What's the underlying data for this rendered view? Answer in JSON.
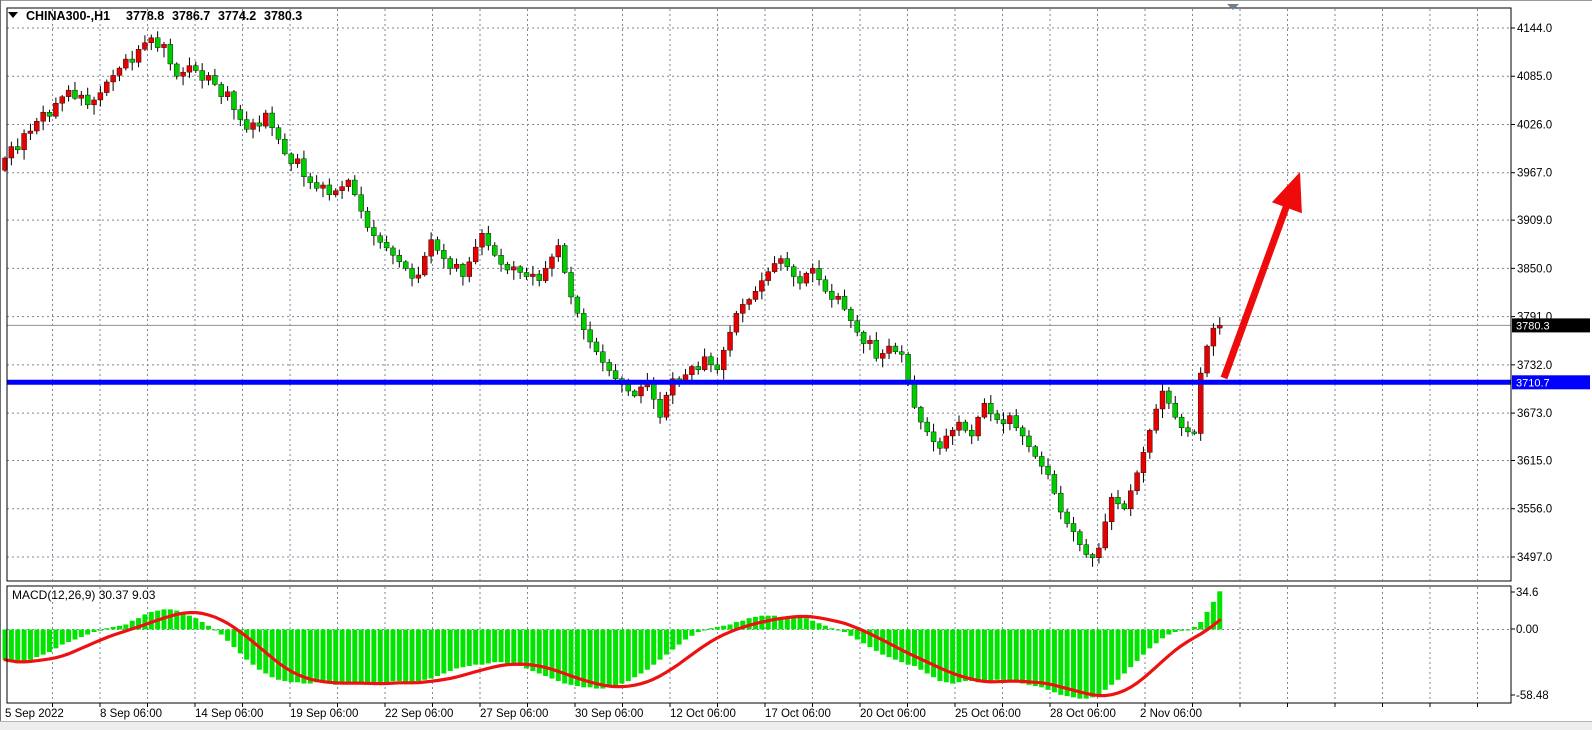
{
  "header": {
    "symbol_period": "CHINA300-,H1",
    "open": "3778.8",
    "high": "3786.7",
    "low": "3774.2",
    "close": "3780.3"
  },
  "price_axis": {
    "tick_labels": [
      "4144.0",
      "4085.0",
      "4026.0",
      "3967.0",
      "3909.0",
      "3850.0",
      "3791.0",
      "3732.0",
      "3673.0",
      "3615.0",
      "3556.0",
      "3497.0"
    ],
    "current_label": "3780.3",
    "hline_label": "3710.7"
  },
  "time_axis": {
    "tick_labels": [
      "5 Sep 2022",
      "8 Sep 06:00",
      "14 Sep 06:00",
      "19 Sep 06:00",
      "22 Sep 06:00",
      "27 Sep 06:00",
      "30 Sep 06:00",
      "12 Oct 06:00",
      "17 Oct 06:00",
      "20 Oct 06:00",
      "25 Oct 06:00",
      "28 Oct 06:00",
      "2 Nov 06:00"
    ]
  },
  "colors": {
    "bull": "#e60000",
    "bear": "#00cc00",
    "wick": "#000000",
    "macd_hist": "#00e400",
    "signal_line": "#ee1111",
    "support_line": "#0000ff",
    "last_price_line": "#909090",
    "grid": "#778899",
    "arrow": "#ef0b0b",
    "badge_current_bg": "#000000",
    "badge_hline_bg": "#0000ff",
    "marker": "#708090"
  },
  "chart_data": {
    "type": "candlestick",
    "title": "CHINA300-,H1",
    "symbol": "CHINA300-",
    "period": "H1",
    "ohlc_display": {
      "open": 3778.8,
      "high": 3786.7,
      "low": 3774.2,
      "close": 3780.3
    },
    "grid": true,
    "y_tick_values": [
      4144.0,
      4085.0,
      4026.0,
      3967.0,
      3909.0,
      3850.0,
      3791.0,
      3732.0,
      3673.0,
      3615.0,
      3556.0,
      3497.0
    ],
    "y_range_labeled": [
      3497.0,
      4144.0
    ],
    "x_tick_labels": [
      "5 Sep 2022",
      "8 Sep 06:00",
      "14 Sep 06:00",
      "19 Sep 06:00",
      "22 Sep 06:00",
      "27 Sep 06:00",
      "30 Sep 06:00",
      "12 Oct 06:00",
      "17 Oct 06:00",
      "20 Oct 06:00",
      "25 Oct 06:00",
      "28 Oct 06:00",
      "2 Nov 06:00"
    ],
    "first_open": 3970,
    "closes": [
      3985,
      3999,
      3995,
      4015,
      4018,
      4030,
      4041,
      4036,
      4052,
      4060,
      4068,
      4058,
      4062,
      4050,
      4056,
      4065,
      4078,
      4086,
      4095,
      4106,
      4102,
      4118,
      4126,
      4132,
      4120,
      4124,
      4100,
      4085,
      4090,
      4098,
      4092,
      4080,
      4086,
      4075,
      4060,
      4066,
      4044,
      4032,
      4020,
      4028,
      4024,
      4040,
      4022,
      4008,
      3990,
      3978,
      3984,
      3962,
      3955,
      3948,
      3952,
      3940,
      3945,
      3950,
      3958,
      3940,
      3920,
      3900,
      3890,
      3882,
      3875,
      3866,
      3858,
      3850,
      3838,
      3842,
      3865,
      3885,
      3872,
      3862,
      3850,
      3855,
      3840,
      3858,
      3876,
      3893,
      3878,
      3866,
      3855,
      3848,
      3852,
      3845,
      3840,
      3843,
      3835,
      3850,
      3864,
      3878,
      3845,
      3815,
      3795,
      3775,
      3760,
      3748,
      3735,
      3725,
      3715,
      3708,
      3700,
      3694,
      3705,
      3712,
      3690,
      3668,
      3695,
      3715,
      3712,
      3720,
      3730,
      3726,
      3742,
      3732,
      3726,
      3750,
      3772,
      3795,
      3806,
      3812,
      3822,
      3835,
      3846,
      3856,
      3862,
      3852,
      3840,
      3832,
      3844,
      3850,
      3836,
      3822,
      3812,
      3816,
      3800,
      3786,
      3772,
      3758,
      3762,
      3740,
      3746,
      3755,
      3748,
      3745,
      3712,
      3680,
      3662,
      3650,
      3638,
      3630,
      3645,
      3652,
      3662,
      3652,
      3645,
      3668,
      3685,
      3672,
      3665,
      3660,
      3670,
      3655,
      3645,
      3632,
      3620,
      3608,
      3598,
      3575,
      3552,
      3538,
      3528,
      3512,
      3500,
      3496,
      3508,
      3540,
      3570,
      3562,
      3556,
      3578,
      3600,
      3625,
      3652,
      3678,
      3700,
      3685,
      3668,
      3655,
      3650,
      3648,
      3722,
      3755,
      3777,
      3780.3
    ],
    "overlays": {
      "horizontal_support_line": 3710.7,
      "last_price_line": 3780.3,
      "trend_arrow": "up"
    },
    "indicator_pane": {
      "type": "macd_histogram_with_signal",
      "label": "MACD(12,26,9) 30.37 9.03",
      "name": "MACD",
      "params": "12,26,9",
      "macd_current": 30.37,
      "signal_current": 9.03,
      "y_tick_labels": [
        "34.6",
        "0.00",
        "-58.48"
      ],
      "y_range": [
        -58.48,
        34.6
      ],
      "signal_rule": "SMA9 of macd_values",
      "macd_values": [
        -24,
        -26,
        -27,
        -26,
        -24,
        -22,
        -20,
        -18,
        -15,
        -12,
        -10,
        -8,
        -6,
        -4,
        -2,
        -1,
        1,
        2,
        3,
        4,
        7,
        9,
        12,
        14,
        15,
        16,
        16,
        15,
        13,
        11,
        9,
        6,
        3,
        0,
        -4,
        -9,
        -14,
        -19,
        -24,
        -28,
        -32,
        -35,
        -38,
        -40,
        -41,
        -42,
        -42,
        -43,
        -43,
        -42,
        -42,
        -43,
        -44,
        -43,
        -42,
        -42,
        -43,
        -44,
        -44,
        -43,
        -42,
        -41,
        -41,
        -42,
        -42,
        -41,
        -40,
        -39,
        -37,
        -35,
        -33,
        -31,
        -30,
        -29,
        -28,
        -28,
        -27,
        -26,
        -26,
        -27,
        -28,
        -29,
        -31,
        -33,
        -35,
        -37,
        -39,
        -41,
        -43,
        -44,
        -45,
        -46,
        -46,
        -47,
        -47,
        -46,
        -45,
        -43,
        -41,
        -38,
        -35,
        -32,
        -28,
        -24,
        -20,
        -16,
        -12,
        -8,
        -5,
        -2,
        0,
        1,
        2,
        3,
        4,
        6,
        7,
        9,
        10,
        11,
        11,
        11,
        10,
        10,
        11,
        10,
        9,
        7,
        5,
        3,
        1,
        0,
        -2,
        -5,
        -8,
        -11,
        -14,
        -17,
        -20,
        -22,
        -24,
        -26,
        -28,
        -29,
        -32,
        -35,
        -38,
        -41,
        -42,
        -43,
        -42,
        -41,
        -41,
        -42,
        -42,
        -41,
        -40,
        -40,
        -41,
        -42,
        -43,
        -44,
        -45,
        -46,
        -48,
        -50,
        -52,
        -53,
        -54,
        -55,
        -55,
        -54,
        -52,
        -48,
        -44,
        -40,
        -35,
        -30,
        -25,
        -20,
        -15,
        -11,
        -7,
        -4,
        -2,
        -1,
        0,
        2,
        6,
        14,
        22,
        30.37
      ]
    }
  }
}
